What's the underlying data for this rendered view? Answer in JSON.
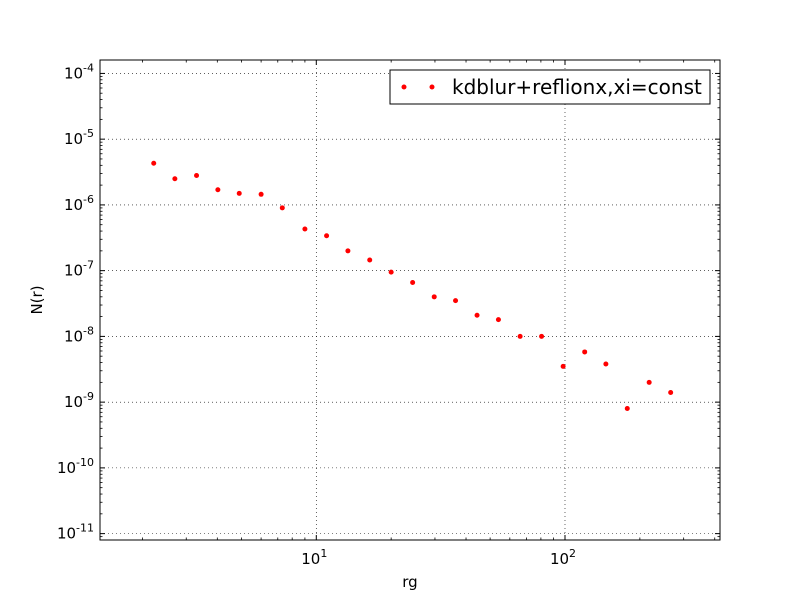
{
  "chart_data": {
    "type": "scatter",
    "xlabel": "rg",
    "ylabel": "N(r)",
    "xscale": "log",
    "yscale": "log",
    "xlim": [
      1.35,
      420
    ],
    "ylim": [
      8e-12,
      0.00016
    ],
    "grid": true,
    "legend_placement": "top-right",
    "x_ticks": [
      {
        "value": 10,
        "base": "10",
        "exp": "1"
      },
      {
        "value": 100,
        "base": "10",
        "exp": "2"
      }
    ],
    "y_ticks": [
      {
        "value": 1e-11,
        "base": "10",
        "exp": "-11"
      },
      {
        "value": 1e-10,
        "base": "10",
        "exp": "-10"
      },
      {
        "value": 1e-09,
        "base": "10",
        "exp": "-9"
      },
      {
        "value": 1e-08,
        "base": "10",
        "exp": "-8"
      },
      {
        "value": 1e-07,
        "base": "10",
        "exp": "-7"
      },
      {
        "value": 1e-06,
        "base": "10",
        "exp": "-6"
      },
      {
        "value": 1e-05,
        "base": "10",
        "exp": "-5"
      },
      {
        "value": 0.0001,
        "base": "10",
        "exp": "-4"
      }
    ],
    "series": [
      {
        "name": "kdblur+reflionx,xi=const",
        "color": "#ff0000",
        "marker": "dot",
        "x": [
          2.22,
          2.7,
          3.3,
          4.02,
          4.9,
          6.0,
          7.3,
          9.0,
          11.0,
          13.4,
          16.4,
          20.0,
          24.4,
          29.8,
          36.3,
          44.3,
          54.0,
          66.0,
          80.5,
          98.3,
          120.0,
          146.0,
          178.0,
          218.0,
          266.0
        ],
        "y": [
          4.3e-06,
          2.5e-06,
          2.8e-06,
          1.7e-06,
          1.5e-06,
          1.45e-06,
          9e-07,
          4.3e-07,
          3.4e-07,
          2e-07,
          1.45e-07,
          9.5e-08,
          6.6e-08,
          4e-08,
          3.5e-08,
          2.1e-08,
          1.8e-08,
          1e-08,
          1e-08,
          3.5e-09,
          5.8e-09,
          3.8e-09,
          8e-10,
          2e-09,
          1.4e-09
        ]
      }
    ]
  }
}
